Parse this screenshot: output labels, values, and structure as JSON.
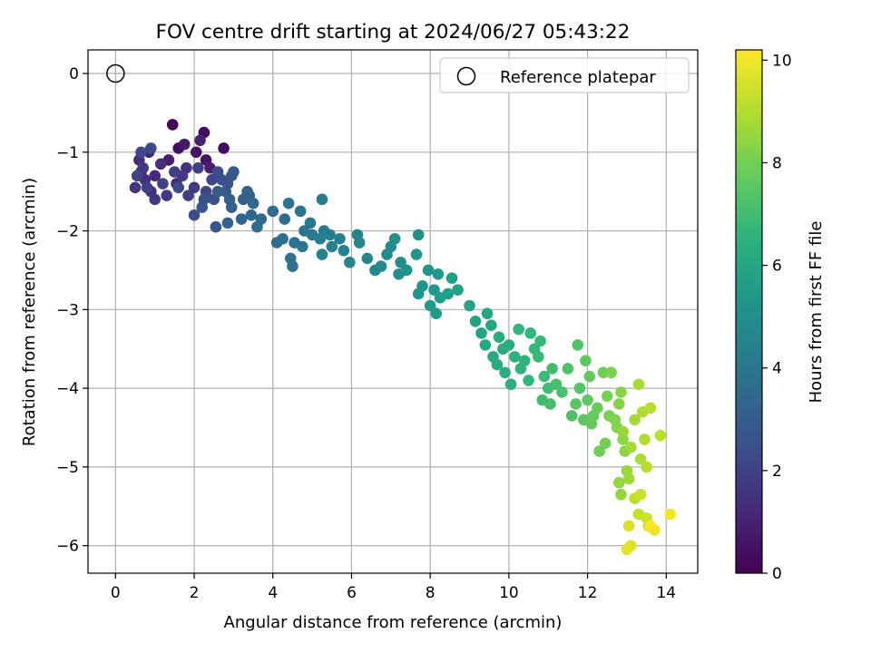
{
  "chart_data": {
    "type": "scatter",
    "title": "FOV centre drift starting at 2024/06/27 05:43:22",
    "xlabel": "Angular distance from reference (arcmin)",
    "ylabel": "Rotation from reference (arcmin)",
    "xlim": [
      -0.7,
      14.8
    ],
    "ylim": [
      -6.35,
      0.3
    ],
    "xticks": [
      "0",
      "2",
      "4",
      "6",
      "8",
      "10",
      "12",
      "14"
    ],
    "yticks": [
      "0",
      "−1",
      "−2",
      "−3",
      "−4",
      "−5",
      "−6"
    ],
    "grid": true,
    "legend": {
      "location": "top-right",
      "entries": [
        "Reference platepar"
      ]
    },
    "reference_point": {
      "x": 0,
      "y": 0
    },
    "colorbar": {
      "label": "Hours from first FF file",
      "colormap": "viridis",
      "range": [
        0,
        10.2
      ],
      "ticks": [
        "0",
        "2",
        "4",
        "6",
        "8",
        "10"
      ]
    },
    "series": [
      {
        "points": [
          [
            1.45,
            -0.65,
            0.1
          ],
          [
            2.25,
            -0.75,
            0.2
          ],
          [
            2.75,
            -0.95,
            0.3
          ],
          [
            1.6,
            -0.95,
            0.4
          ],
          [
            2.05,
            -1.0,
            0.5
          ],
          [
            2.3,
            -1.1,
            0.6
          ],
          [
            1.75,
            -0.9,
            0.7
          ],
          [
            1.35,
            -1.1,
            0.8
          ],
          [
            2.4,
            -1.2,
            0.9
          ],
          [
            2.15,
            -0.85,
            1.0
          ],
          [
            0.85,
            -1.0,
            1.1
          ],
          [
            0.65,
            -1.25,
            1.15
          ],
          [
            1.55,
            -1.4,
            1.2
          ],
          [
            1.0,
            -1.3,
            1.25
          ],
          [
            0.75,
            -1.35,
            1.3
          ],
          [
            0.6,
            -1.1,
            1.35
          ],
          [
            1.15,
            -1.15,
            1.4
          ],
          [
            0.9,
            -1.5,
            1.45
          ],
          [
            0.5,
            -1.45,
            1.5
          ],
          [
            1.8,
            -1.2,
            1.55
          ],
          [
            1.0,
            -1.6,
            1.6
          ],
          [
            1.3,
            -1.55,
            1.65
          ],
          [
            0.7,
            -1.2,
            1.7
          ],
          [
            1.7,
            -1.3,
            1.75
          ],
          [
            2.0,
            -1.45,
            1.8
          ],
          [
            1.85,
            -1.55,
            1.85
          ],
          [
            1.5,
            -1.25,
            1.9
          ],
          [
            2.1,
            -1.2,
            1.95
          ],
          [
            0.8,
            -1.45,
            2.0
          ],
          [
            0.55,
            -1.3,
            2.05
          ],
          [
            1.2,
            -1.4,
            2.1
          ],
          [
            2.3,
            -1.5,
            2.15
          ],
          [
            2.45,
            -1.35,
            2.2
          ],
          [
            0.65,
            -1.0,
            2.25
          ],
          [
            0.9,
            -0.95,
            2.3
          ],
          [
            2.0,
            -1.8,
            2.35
          ],
          [
            2.6,
            -1.25,
            2.4
          ],
          [
            1.6,
            -1.45,
            2.45
          ],
          [
            2.5,
            -1.6,
            2.5
          ],
          [
            2.85,
            -1.4,
            2.55
          ],
          [
            2.25,
            -1.6,
            2.6
          ],
          [
            2.7,
            -1.35,
            2.65
          ],
          [
            2.2,
            -1.7,
            2.7
          ],
          [
            2.55,
            -1.95,
            2.75
          ],
          [
            2.95,
            -1.3,
            2.8
          ],
          [
            2.8,
            -1.5,
            2.85
          ],
          [
            3.0,
            -1.25,
            2.9
          ],
          [
            2.6,
            -1.5,
            2.95
          ],
          [
            2.9,
            -1.6,
            3.0
          ],
          [
            3.25,
            -1.6,
            3.05
          ],
          [
            3.4,
            -1.55,
            3.1
          ],
          [
            2.95,
            -1.7,
            3.15
          ],
          [
            3.35,
            -1.5,
            3.2
          ],
          [
            2.85,
            -1.9,
            3.25
          ],
          [
            3.2,
            -1.85,
            3.3
          ],
          [
            3.5,
            -1.65,
            3.35
          ],
          [
            3.45,
            -1.8,
            3.4
          ],
          [
            3.7,
            -1.85,
            3.45
          ],
          [
            3.6,
            -1.95,
            3.5
          ],
          [
            4.0,
            -1.75,
            3.55
          ],
          [
            4.3,
            -1.85,
            3.6
          ],
          [
            4.1,
            -2.15,
            3.65
          ],
          [
            4.25,
            -2.1,
            3.7
          ],
          [
            4.45,
            -2.35,
            3.75
          ],
          [
            4.5,
            -2.45,
            3.8
          ],
          [
            4.55,
            -2.15,
            3.85
          ],
          [
            4.7,
            -1.75,
            3.9
          ],
          [
            4.4,
            -1.65,
            3.95
          ],
          [
            4.8,
            -2.0,
            4.0
          ],
          [
            4.75,
            -2.2,
            4.05
          ],
          [
            4.95,
            -1.9,
            4.1
          ],
          [
            5.0,
            -2.05,
            4.15
          ],
          [
            5.25,
            -1.6,
            4.2
          ],
          [
            5.3,
            -2.0,
            4.25
          ],
          [
            5.2,
            -2.1,
            4.3
          ],
          [
            5.45,
            -2.05,
            4.35
          ],
          [
            5.5,
            -2.2,
            4.4
          ],
          [
            5.25,
            -2.3,
            4.45
          ],
          [
            5.7,
            -2.1,
            4.5
          ],
          [
            5.8,
            -2.25,
            4.55
          ],
          [
            5.95,
            -2.4,
            4.6
          ],
          [
            6.15,
            -2.05,
            4.65
          ],
          [
            6.2,
            -2.15,
            4.7
          ],
          [
            6.4,
            -2.35,
            4.75
          ],
          [
            6.6,
            -2.5,
            4.8
          ],
          [
            6.75,
            -2.45,
            4.85
          ],
          [
            6.9,
            -2.3,
            4.9
          ],
          [
            7.0,
            -2.2,
            4.95
          ],
          [
            7.1,
            -2.1,
            5.0
          ],
          [
            7.25,
            -2.4,
            5.05
          ],
          [
            7.2,
            -2.55,
            5.1
          ],
          [
            7.4,
            -2.5,
            5.15
          ],
          [
            7.7,
            -2.05,
            5.2
          ],
          [
            7.65,
            -2.3,
            5.25
          ],
          [
            7.8,
            -2.7,
            5.3
          ],
          [
            7.7,
            -2.8,
            5.35
          ],
          [
            7.95,
            -2.5,
            5.4
          ],
          [
            8.1,
            -2.75,
            5.45
          ],
          [
            8.2,
            -2.55,
            5.5
          ],
          [
            8.0,
            -2.95,
            5.55
          ],
          [
            8.15,
            -3.05,
            5.6
          ],
          [
            8.25,
            -2.85,
            5.65
          ],
          [
            8.45,
            -2.8,
            5.7
          ],
          [
            8.55,
            -2.6,
            5.75
          ],
          [
            8.7,
            -2.75,
            5.8
          ],
          [
            9.0,
            -2.95,
            5.85
          ],
          [
            9.15,
            -3.15,
            5.9
          ],
          [
            9.3,
            -3.3,
            5.95
          ],
          [
            9.45,
            -3.05,
            6.0
          ],
          [
            9.55,
            -3.2,
            6.05
          ],
          [
            9.4,
            -3.45,
            6.1
          ],
          [
            9.6,
            -3.6,
            6.15
          ],
          [
            9.75,
            -3.35,
            6.2
          ],
          [
            9.7,
            -3.7,
            6.25
          ],
          [
            9.85,
            -3.5,
            6.3
          ],
          [
            10.0,
            -3.45,
            6.35
          ],
          [
            9.9,
            -3.8,
            6.4
          ],
          [
            10.05,
            -3.95,
            6.45
          ],
          [
            10.15,
            -3.6,
            6.5
          ],
          [
            10.3,
            -3.75,
            6.55
          ],
          [
            10.4,
            -3.65,
            6.6
          ],
          [
            10.25,
            -3.25,
            6.65
          ],
          [
            10.5,
            -3.9,
            6.7
          ],
          [
            10.55,
            -3.3,
            6.75
          ],
          [
            10.65,
            -3.5,
            6.8
          ],
          [
            10.8,
            -3.4,
            6.85
          ],
          [
            10.75,
            -3.6,
            6.9
          ],
          [
            10.9,
            -3.85,
            6.95
          ],
          [
            10.85,
            -4.15,
            7.0
          ],
          [
            11.0,
            -4.0,
            7.05
          ],
          [
            11.1,
            -3.75,
            7.1
          ],
          [
            11.05,
            -4.2,
            7.15
          ],
          [
            11.2,
            -3.95,
            7.2
          ],
          [
            11.35,
            -4.05,
            7.25
          ],
          [
            11.5,
            -3.75,
            7.3
          ],
          [
            11.6,
            -4.35,
            7.35
          ],
          [
            11.75,
            -3.45,
            7.4
          ],
          [
            11.8,
            -4.0,
            7.45
          ],
          [
            11.7,
            -4.2,
            7.5
          ],
          [
            11.9,
            -4.4,
            7.55
          ],
          [
            11.95,
            -3.65,
            7.6
          ],
          [
            12.0,
            -4.15,
            7.65
          ],
          [
            12.05,
            -3.85,
            7.7
          ],
          [
            12.1,
            -4.45,
            7.75
          ],
          [
            12.15,
            -4.35,
            7.8
          ],
          [
            12.25,
            -4.25,
            7.85
          ],
          [
            12.3,
            -4.8,
            7.9
          ],
          [
            12.4,
            -3.8,
            7.95
          ],
          [
            12.45,
            -4.7,
            8.0
          ],
          [
            12.5,
            -4.1,
            8.05
          ],
          [
            12.55,
            -4.35,
            8.1
          ],
          [
            12.6,
            -3.8,
            8.15
          ],
          [
            12.7,
            -4.4,
            8.2
          ],
          [
            12.75,
            -4.5,
            8.25
          ],
          [
            12.8,
            -4.2,
            8.3
          ],
          [
            12.85,
            -4.05,
            8.35
          ],
          [
            12.9,
            -4.65,
            8.4
          ],
          [
            12.95,
            -4.8,
            8.45
          ],
          [
            12.8,
            -5.2,
            8.5
          ],
          [
            12.85,
            -5.35,
            8.55
          ],
          [
            12.9,
            -4.55,
            8.6
          ],
          [
            13.0,
            -5.05,
            8.65
          ],
          [
            13.05,
            -5.15,
            8.7
          ],
          [
            13.1,
            -4.75,
            8.75
          ],
          [
            13.2,
            -4.4,
            8.8
          ],
          [
            13.3,
            -3.95,
            8.85
          ],
          [
            13.35,
            -4.9,
            8.9
          ],
          [
            13.45,
            -4.65,
            8.95
          ],
          [
            13.4,
            -4.3,
            9.0
          ],
          [
            13.6,
            -4.25,
            9.05
          ],
          [
            13.5,
            -5.0,
            9.1
          ],
          [
            13.85,
            -4.6,
            9.15
          ],
          [
            13.2,
            -5.4,
            9.2
          ],
          [
            13.3,
            -5.6,
            9.3
          ],
          [
            13.35,
            -5.35,
            9.35
          ],
          [
            13.5,
            -5.65,
            9.45
          ],
          [
            13.55,
            -5.75,
            9.55
          ],
          [
            13.05,
            -5.75,
            9.6
          ],
          [
            13.1,
            -6.0,
            9.7
          ],
          [
            13.0,
            -6.05,
            9.8
          ],
          [
            13.7,
            -5.8,
            9.9
          ],
          [
            14.1,
            -5.6,
            10.0
          ],
          [
            13.6,
            -5.75,
            10.1
          ]
        ]
      }
    ]
  }
}
